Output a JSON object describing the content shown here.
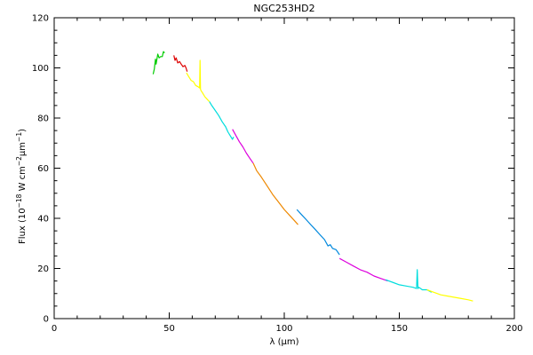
{
  "chart_data": {
    "type": "line",
    "title": "NGC253HD2",
    "xlabel": "λ (μm)",
    "ylabel_parts": {
      "prefix": "Flux (10",
      "exp1": "−18",
      "mid": " W cm",
      "exp2": "−2",
      "mid2": "μm",
      "exp3": "−1",
      "suffix": ")"
    },
    "xlim": [
      0,
      200
    ],
    "ylim": [
      0,
      120
    ],
    "xticks": [
      0,
      50,
      100,
      150,
      200
    ],
    "yticks": [
      0,
      20,
      40,
      60,
      80,
      100,
      120
    ],
    "x_minor_step": 10,
    "y_minor_step": 5,
    "grid": false,
    "series": [
      {
        "color": "#00cc00",
        "x": [
          43.0,
          43.5,
          44.0,
          44.3,
          45.0,
          45.6,
          46.2,
          47.0,
          47.5,
          48.0
        ],
        "y": [
          97.5,
          99.5,
          103.5,
          101.5,
          105.5,
          104.0,
          104.5,
          104.5,
          106.5,
          106.0
        ]
      },
      {
        "color": "#dd0000",
        "x": [
          52.0,
          52.5,
          53.0,
          53.7,
          54.5,
          55.2,
          56.0,
          56.8,
          57.3,
          57.8
        ],
        "y": [
          105.0,
          103.0,
          104.0,
          102.0,
          102.5,
          101.5,
          100.5,
          101.0,
          100.0,
          98.5
        ]
      },
      {
        "color": "#ffff00",
        "x": [
          57.5,
          58.5,
          59.5,
          60.5,
          61.5,
          62.5,
          63.2,
          63.4,
          63.6,
          63.8,
          64.5,
          65.5,
          66.5,
          67.5
        ],
        "y": [
          98.0,
          96.5,
          95.0,
          94.5,
          93.0,
          92.5,
          92.0,
          103.0,
          91.5,
          91.0,
          90.0,
          88.5,
          87.5,
          86.5
        ]
      },
      {
        "color": "#00dddd",
        "x": [
          67.5,
          68.5,
          70.0,
          71.5,
          73.0,
          74.5,
          75.5,
          76.5,
          77.5,
          78.0
        ],
        "y": [
          86.5,
          85.0,
          83.0,
          81.0,
          78.5,
          76.5,
          74.5,
          73.0,
          71.5,
          72.5
        ]
      },
      {
        "color": "#dd00dd",
        "x": [
          77.5,
          79.0,
          80.5,
          82.0,
          83.5,
          85.0,
          86.5
        ],
        "y": [
          75.5,
          73.0,
          70.5,
          68.5,
          66.0,
          64.0,
          62.0
        ]
      },
      {
        "color": "#ee8800",
        "x": [
          86.5,
          88.0,
          90.0,
          92.5,
          95.0,
          97.5,
          100.0,
          102.5,
          105.0,
          106.0
        ],
        "y": [
          62.0,
          59.0,
          56.5,
          53.0,
          49.5,
          46.5,
          43.5,
          41.0,
          38.5,
          37.5
        ]
      },
      {
        "color": "#0088dd",
        "x": [
          105.5,
          107.5,
          109.5,
          111.5,
          113.5,
          115.5,
          117.5,
          119.0,
          120.0,
          121.0,
          122.5,
          124.0
        ],
        "y": [
          43.5,
          41.5,
          39.5,
          37.5,
          35.5,
          33.5,
          31.5,
          29.0,
          29.5,
          28.0,
          27.5,
          25.5
        ]
      },
      {
        "color": "#dd00dd",
        "x": [
          124.0,
          127.0,
          130.0,
          133.0,
          136.0,
          139.0,
          142.0,
          145.0
        ],
        "y": [
          24.0,
          22.5,
          21.0,
          19.5,
          18.5,
          17.0,
          16.0,
          15.0
        ]
      },
      {
        "color": "#00dddd",
        "x": [
          144.0,
          147.0,
          150.0,
          153.0,
          156.0,
          157.5,
          157.8,
          158.1,
          158.5,
          160.0,
          162.0,
          164.0
        ],
        "y": [
          15.5,
          14.5,
          13.5,
          13.0,
          12.5,
          12.0,
          19.5,
          12.0,
          12.5,
          11.5,
          11.5,
          10.5
        ]
      },
      {
        "color": "#ffff00",
        "x": [
          162.0,
          165.0,
          168.0,
          171.0,
          174.0,
          177.0,
          180.0,
          182.0
        ],
        "y": [
          11.5,
          10.5,
          9.5,
          9.0,
          8.5,
          8.0,
          7.5,
          7.0
        ]
      }
    ]
  }
}
